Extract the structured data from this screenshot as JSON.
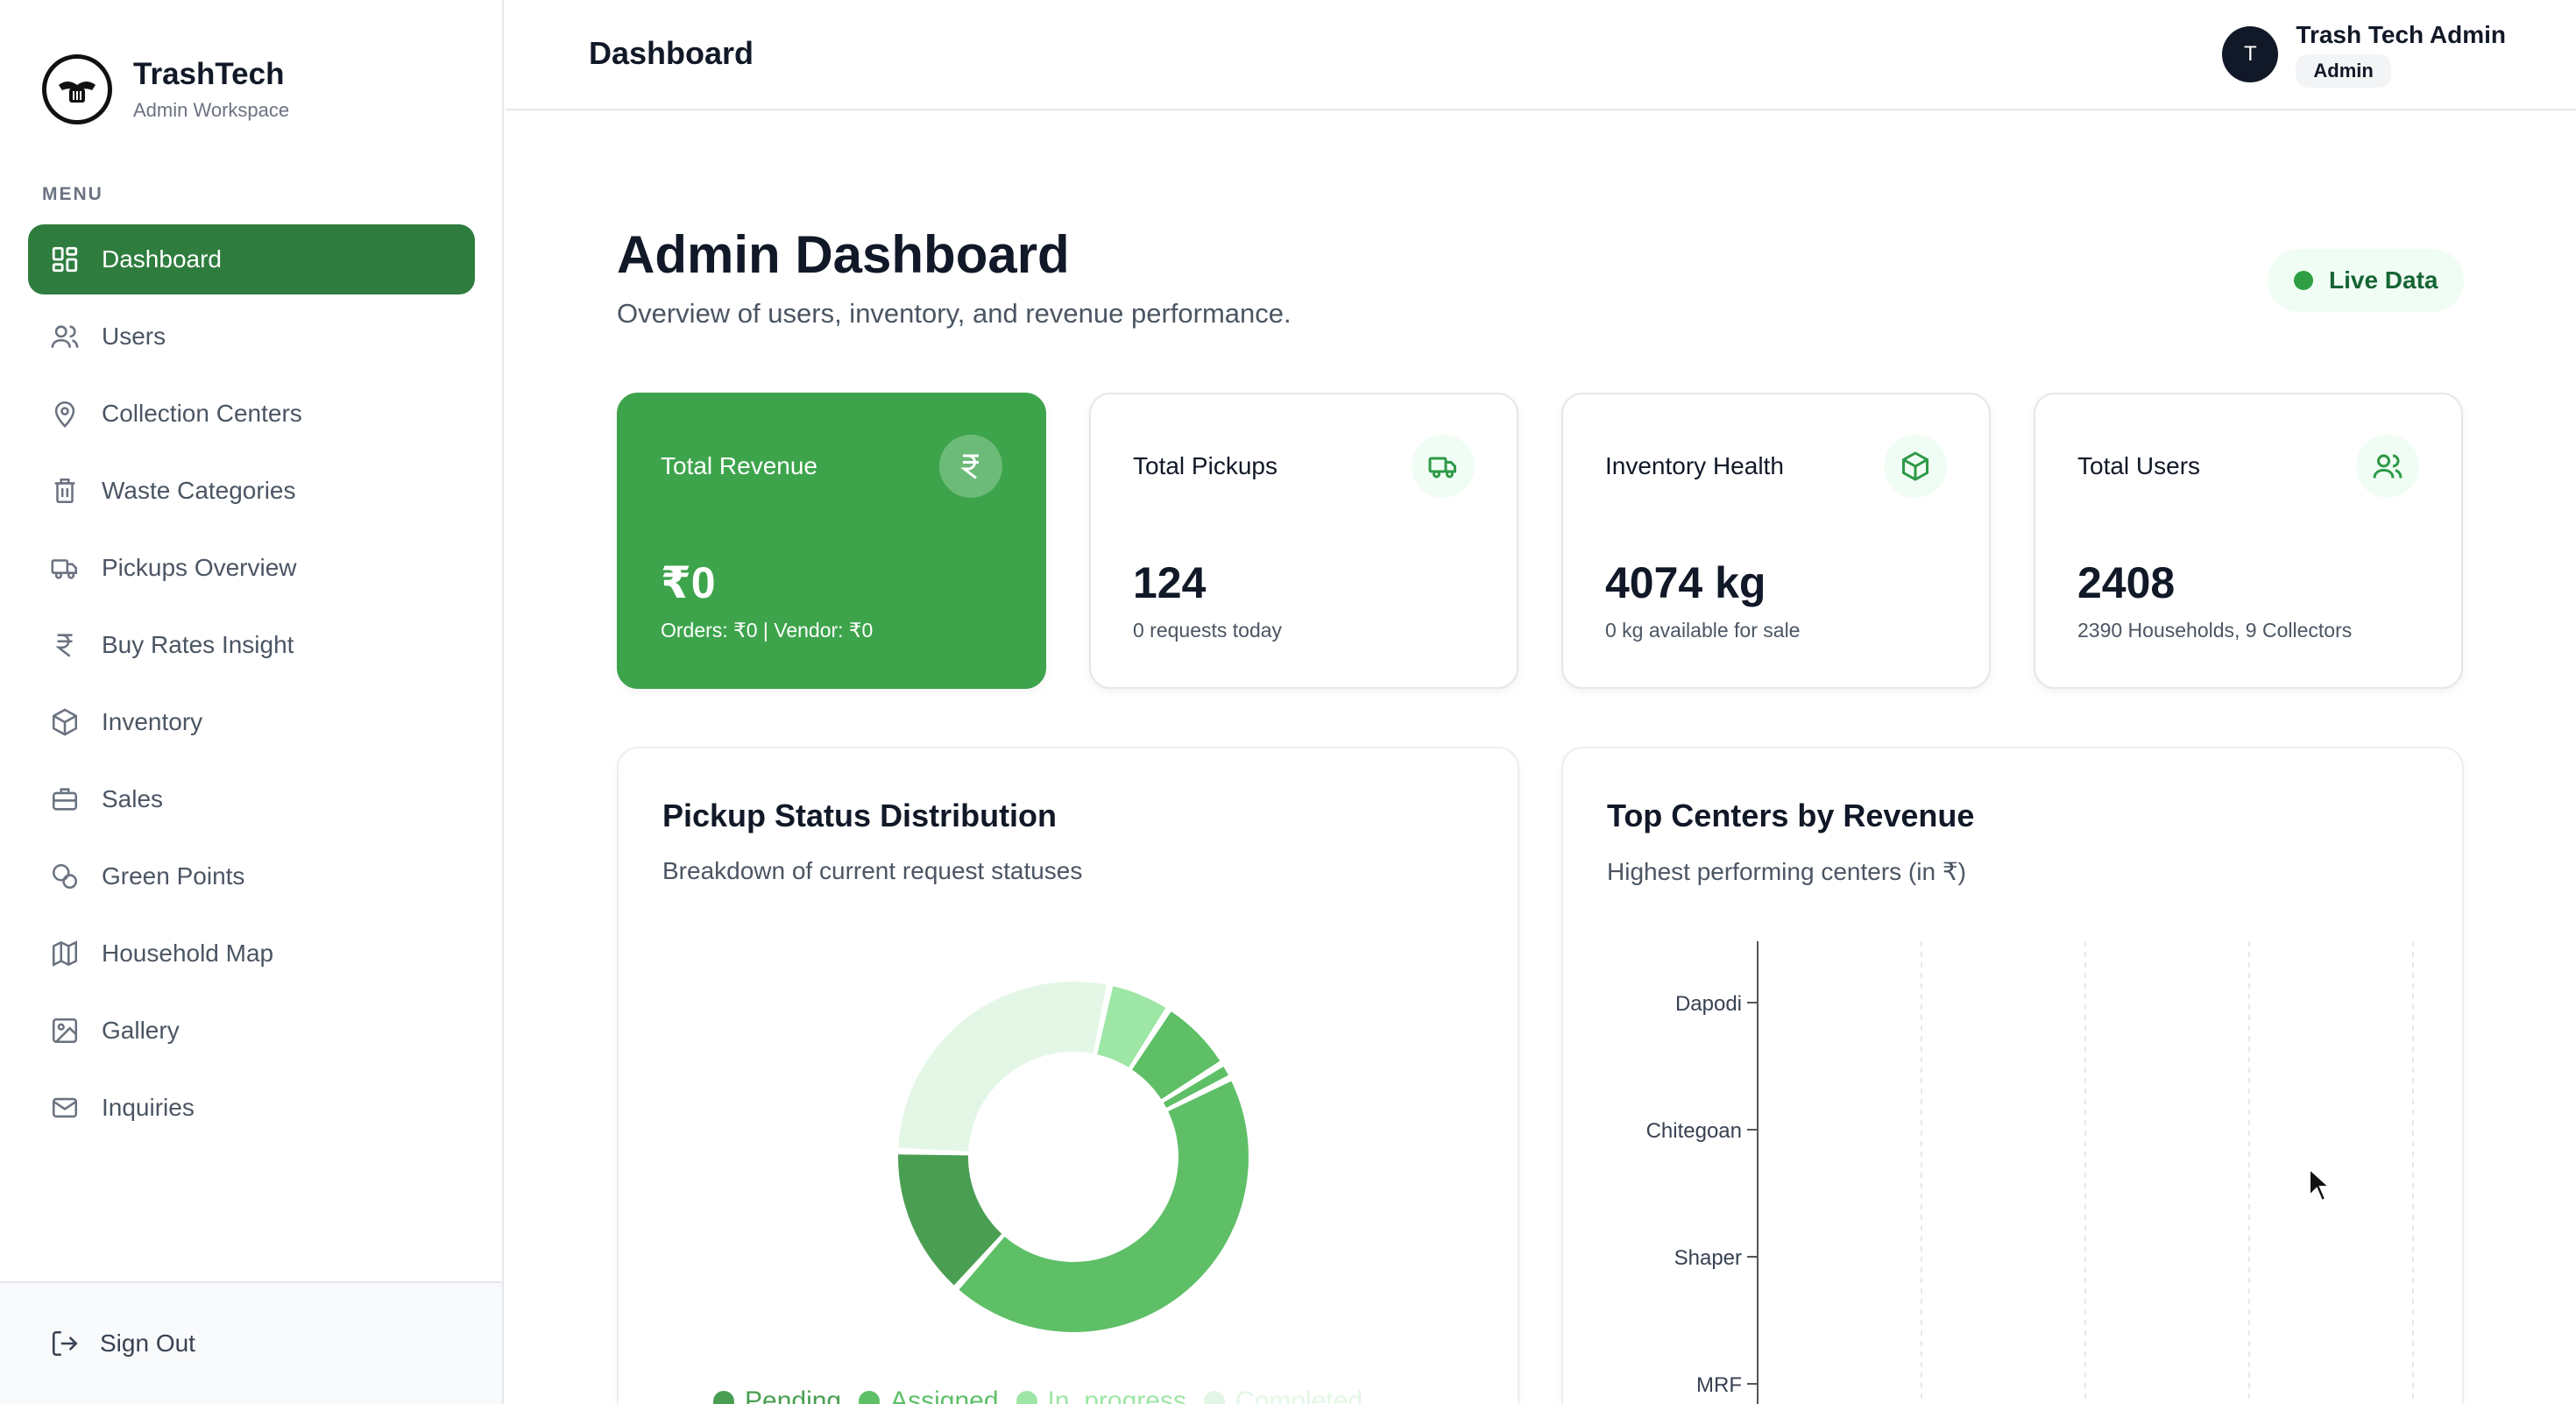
{
  "brand": {
    "name": "TrashTech",
    "subtitle": "Admin Workspace"
  },
  "sidebar": {
    "menu_label": "MENU",
    "items": [
      {
        "label": "Dashboard",
        "icon": "dashboard-grid-icon",
        "active": true
      },
      {
        "label": "Users",
        "icon": "users-icon"
      },
      {
        "label": "Collection Centers",
        "icon": "map-pin-icon"
      },
      {
        "label": "Waste Categories",
        "icon": "trash-icon"
      },
      {
        "label": "Pickups Overview",
        "icon": "truck-icon"
      },
      {
        "label": "Buy Rates Insight",
        "icon": "rupee-icon"
      },
      {
        "label": "Inventory",
        "icon": "box-icon"
      },
      {
        "label": "Sales",
        "icon": "briefcase-icon"
      },
      {
        "label": "Green Points",
        "icon": "coins-icon"
      },
      {
        "label": "Household Map",
        "icon": "map-icon"
      },
      {
        "label": "Gallery",
        "icon": "image-icon"
      },
      {
        "label": "Inquiries",
        "icon": "mail-icon"
      }
    ],
    "signout_label": "Sign Out"
  },
  "header": {
    "title": "Dashboard",
    "user": {
      "initial": "T",
      "name": "Trash Tech Admin",
      "role": "Admin"
    }
  },
  "main": {
    "title": "Admin Dashboard",
    "subtitle": "Overview of users, inventory, and revenue performance.",
    "live_label": "Live Data",
    "cards": [
      {
        "title": "Total Revenue",
        "value": "₹0",
        "note": "Orders: ₹0 | Vendor: ₹0",
        "icon": "rupee-icon"
      },
      {
        "title": "Total Pickups",
        "value": "124",
        "note": "0 requests today",
        "icon": "truck-icon"
      },
      {
        "title": "Inventory Health",
        "value": "4074 kg",
        "note": "0 kg available for sale",
        "icon": "box-icon"
      },
      {
        "title": "Total Users",
        "value": "2408",
        "note": "2390 Households, 9 Collectors",
        "icon": "users-icon"
      }
    ],
    "pickup_panel": {
      "title": "Pickup Status Distribution",
      "subtitle": "Breakdown of current request statuses"
    },
    "centers_panel": {
      "title": "Top Centers by Revenue",
      "subtitle": "Highest performing centers (in ₹)"
    }
  },
  "colors": {
    "primary": "#2e7d3e",
    "card_green": "#3da44c",
    "accent_light": "#f0fdf4"
  },
  "chart_data": [
    {
      "type": "pie",
      "title": "Pickup Status Distribution",
      "donut": true,
      "labels": [
        "Pending",
        "Assigned",
        "In_progress",
        "Completed"
      ],
      "colors": [
        "#4a9e52",
        "#5ebf67",
        "#9ee6a6",
        "#e4f7e6"
      ],
      "slices": [
        {
          "value": 5,
          "color": "#9ee6a6"
        },
        {
          "value": 6,
          "color": "#5ebf67"
        },
        {
          "value": 1.3,
          "color": "#5ebf67"
        },
        {
          "value": 38,
          "color": "#5ebf67"
        },
        {
          "value": 12,
          "color": "#4a9e52"
        },
        {
          "value": 24,
          "color": "#e4f7e6"
        }
      ]
    },
    {
      "type": "bar",
      "orientation": "horizontal",
      "title": "Top Centers by Revenue",
      "categories": [
        "Dapodi",
        "Chitegoan",
        "Shaper",
        "MRF"
      ],
      "values": [
        0,
        0,
        0,
        0
      ],
      "grid": true
    }
  ]
}
